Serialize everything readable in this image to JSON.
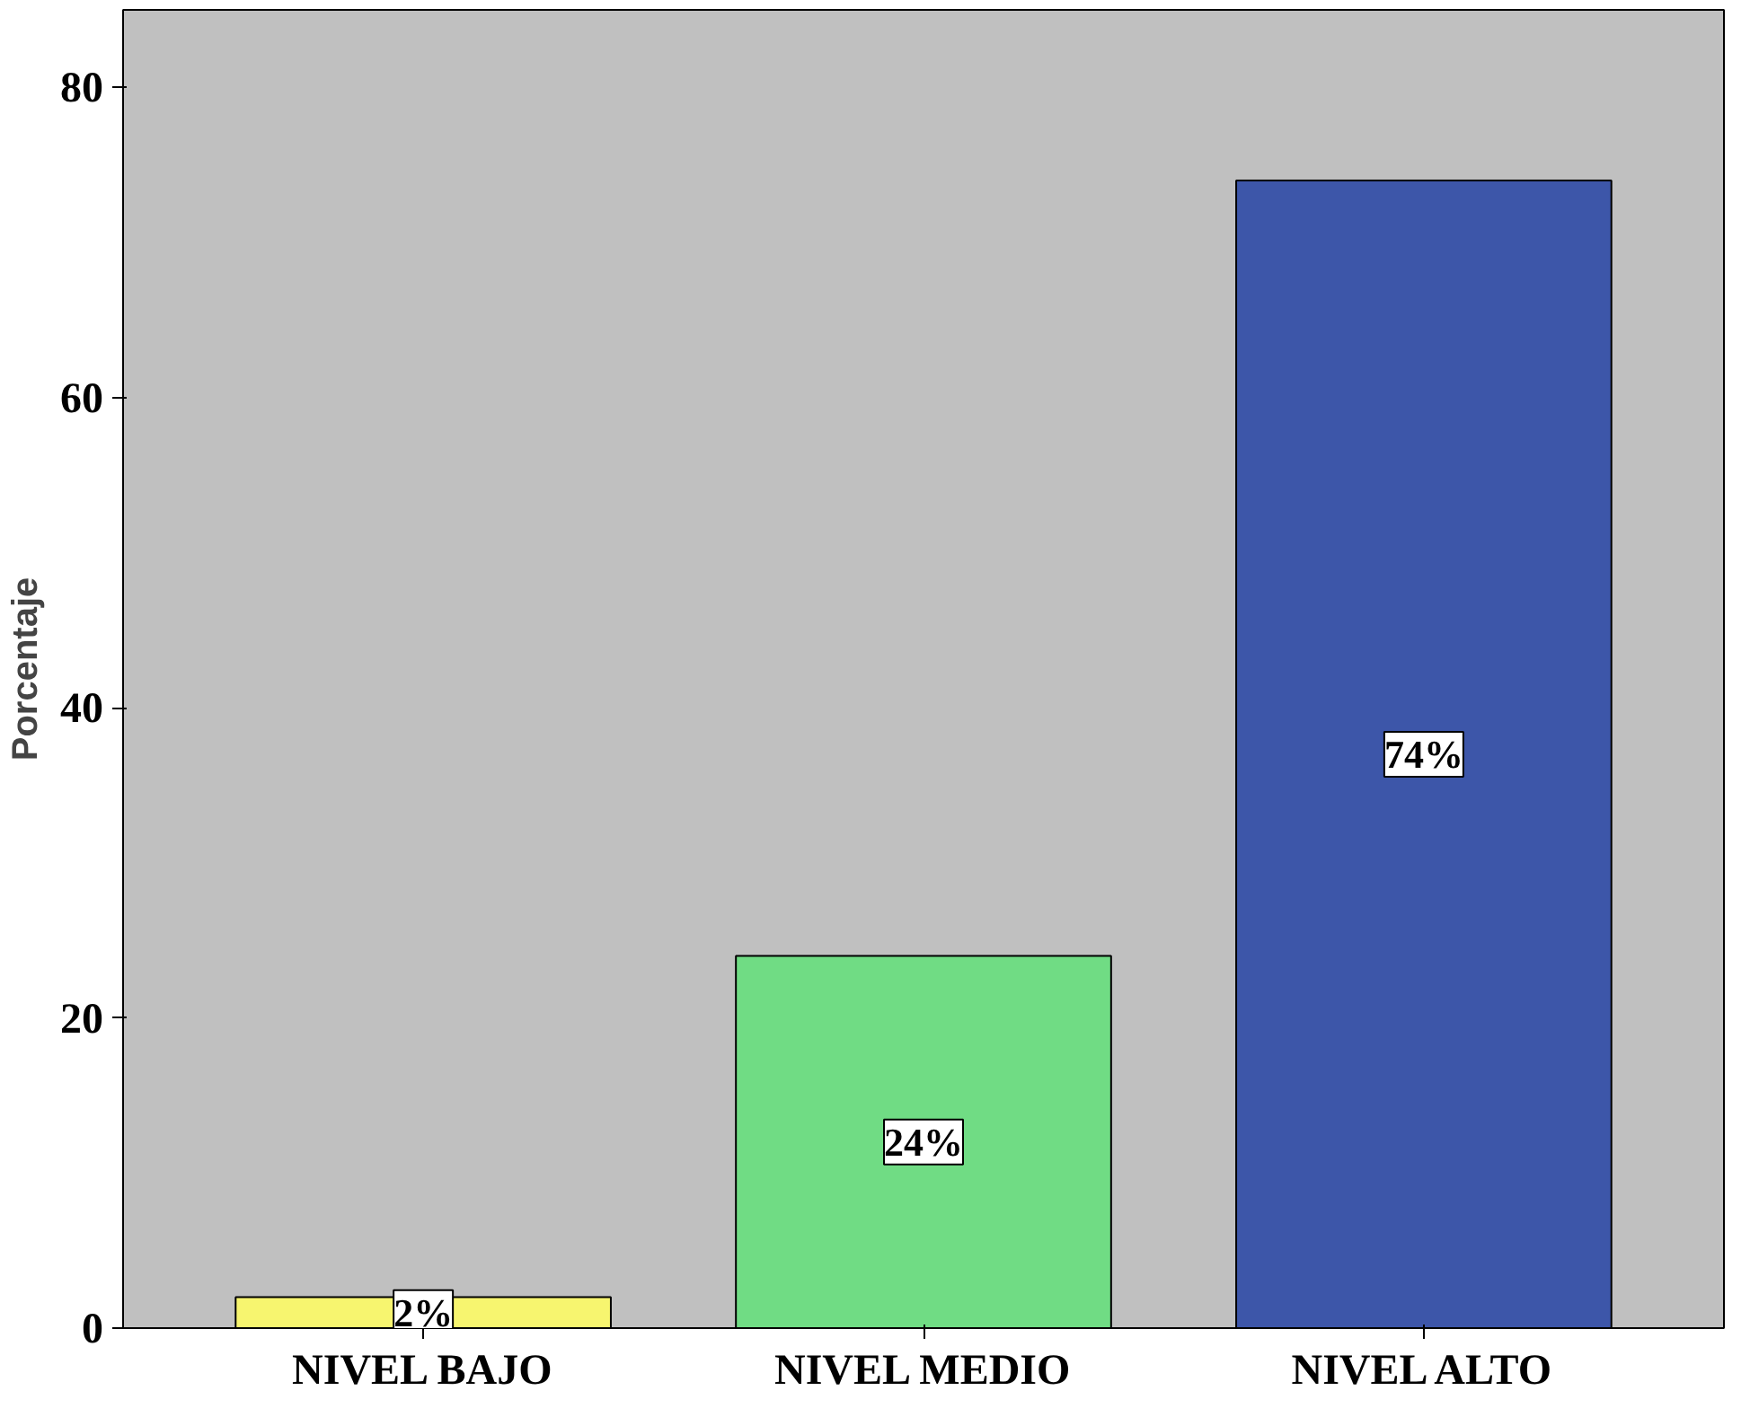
{
  "chart_data": {
    "type": "bar",
    "ylabel": "Porcentaje",
    "categories": [
      "NIVEL BAJO",
      "NIVEL MEDIO",
      "NIVEL ALTO"
    ],
    "values": [
      2,
      24,
      74
    ],
    "colors": [
      "#f7f56f",
      "#70dc84",
      "#3d56a9"
    ],
    "value_labels": [
      "2%",
      "24%",
      "74%"
    ],
    "ylim": [
      0,
      85
    ],
    "yticks": [
      0,
      20,
      40,
      60,
      80
    ],
    "grid": false
  }
}
